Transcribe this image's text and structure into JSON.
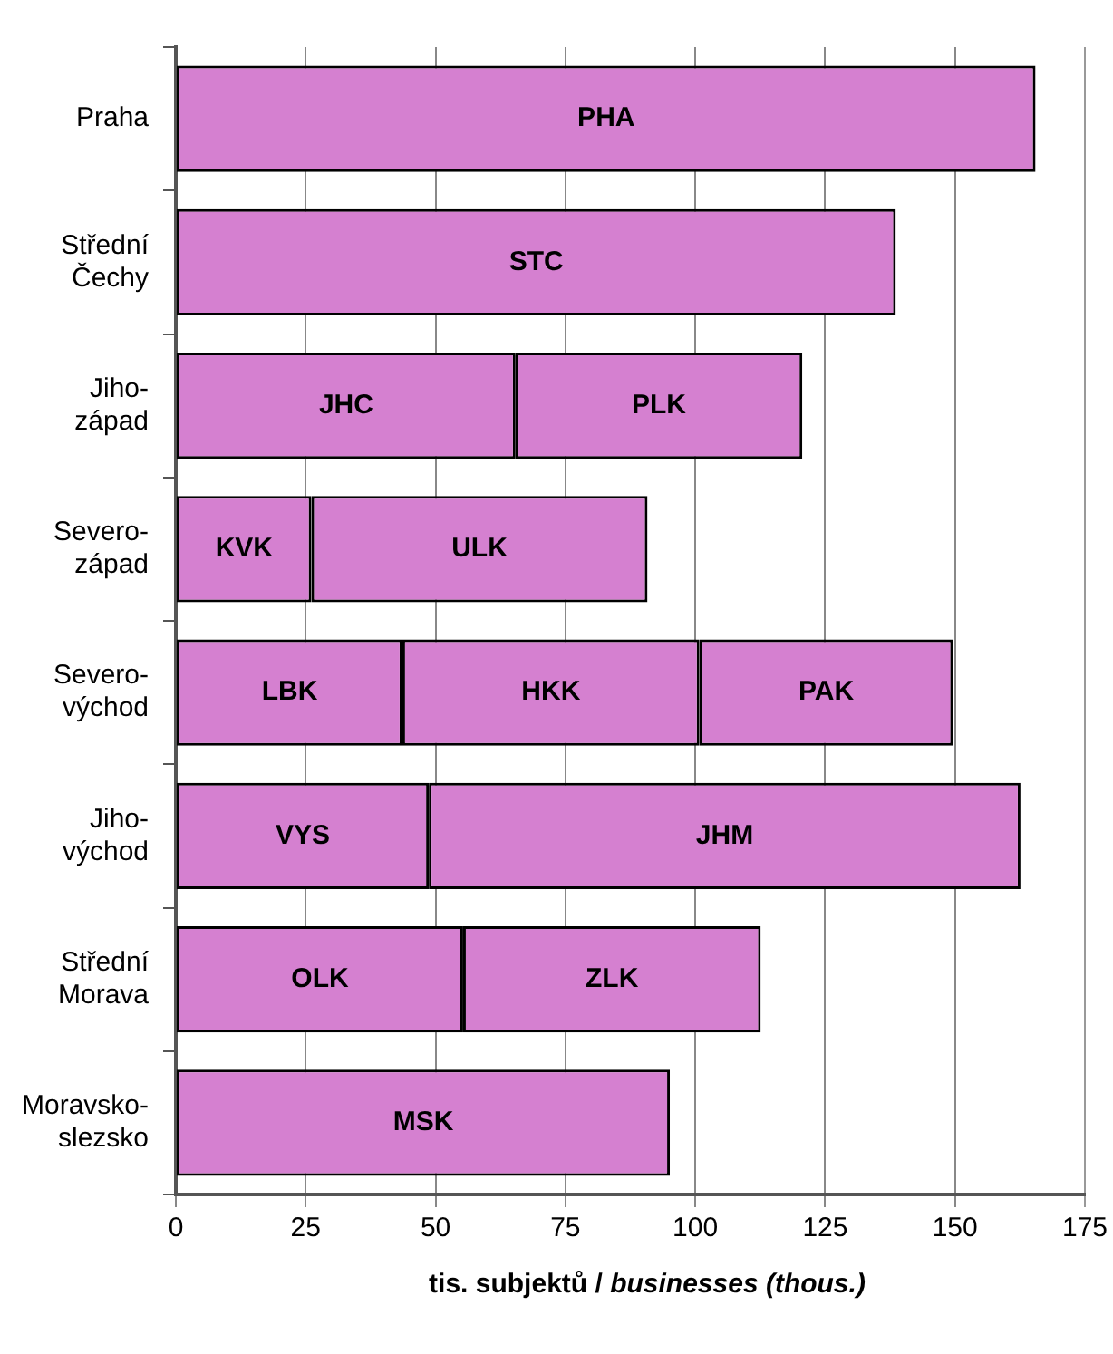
{
  "chart_data": {
    "type": "bar",
    "orientation": "horizontal",
    "stacked": true,
    "xlabel": "tis. subjektů / businesses (thous.)",
    "categories": [
      "Praha",
      "Střední\nČechy",
      "Jiho-\nzápad",
      "Severo-\nzápad",
      "Severo-\nvýchod",
      "Jiho-\nvýchod",
      "Střední\nMorava",
      "Moravsko-\nslezsko"
    ],
    "series": [
      {
        "color": "#d580d0",
        "values": [
          165.5,
          138.6,
          65.4,
          26.1,
          43.6,
          48.7,
          55.3,
          95.1
        ],
        "value_labels": [
          "PHA",
          "STC",
          "JHC",
          "KVK",
          "LBK",
          "VYS",
          "OLK",
          "MSK"
        ]
      },
      {
        "color": "#d580d0",
        "values": [
          null,
          null,
          55.2,
          64.7,
          57.2,
          113.9,
          57.3,
          null
        ],
        "value_labels": [
          null,
          null,
          "PLK",
          "ULK",
          "HKK",
          "JHM",
          "ZLK",
          null
        ]
      },
      {
        "color": "#d580d0",
        "values": [
          null,
          null,
          null,
          null,
          48.8,
          null,
          null,
          null
        ],
        "value_labels": [
          null,
          null,
          null,
          null,
          "PAK",
          null,
          null,
          null
        ]
      }
    ],
    "xlim": [
      0,
      175
    ],
    "xticks": [
      0,
      25,
      50,
      75,
      100,
      125,
      150,
      175
    ],
    "grid": "x",
    "legend": false
  }
}
